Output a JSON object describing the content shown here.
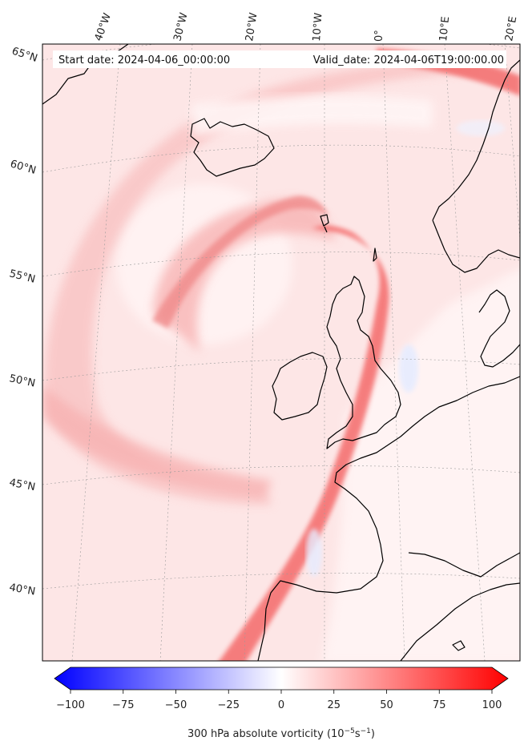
{
  "header": {
    "start_date": "Start date: 2024-04-06_00:00:00",
    "valid_date": "Valid_date: 2024-04-06T19:00:00.00"
  },
  "longitude_labels": [
    "40°W",
    "30°W",
    "20°W",
    "10°W",
    "0°",
    "10°E",
    "20°E"
  ],
  "latitude_labels": [
    "65°N",
    "60°N",
    "55°N",
    "50°N",
    "45°N",
    "40°N"
  ],
  "colorbar": {
    "ticks": [
      "−100",
      "−75",
      "−50",
      "−25",
      "0",
      "25",
      "50",
      "75",
      "100"
    ],
    "min": -100,
    "max": 100,
    "label_prefix": "300 hPa absolute vorticity (10",
    "label_exp1": "−5",
    "label_mid": "s",
    "label_exp2": "−1",
    "label_suffix": ")",
    "colors": {
      "negative": "#0000ff",
      "neutral": "#ffffff",
      "positive": "#ff0000"
    }
  },
  "colors": {
    "coastline": "#000000",
    "grid": "#9a9a9a"
  }
}
